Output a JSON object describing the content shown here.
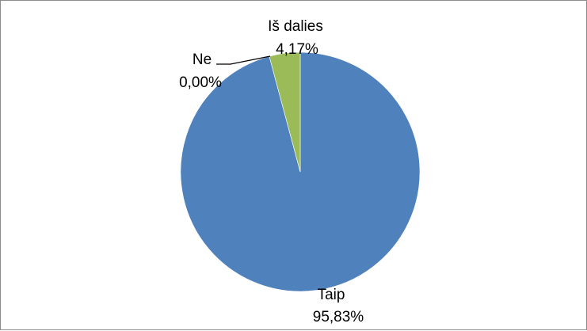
{
  "chart_data": {
    "type": "pie",
    "start_angle_deg": 0,
    "direction": "clockwise",
    "slices": [
      {
        "label": "Taip",
        "value": 95.83,
        "value_text": "95,83%",
        "color": "#4f81bd"
      },
      {
        "label": "Ne",
        "value": 0.0,
        "value_text": "0,00%",
        "color": "#c0504d"
      },
      {
        "label": "Iš dalies",
        "value": 4.17,
        "value_text": "4,17%",
        "color": "#9bbb59"
      }
    ],
    "title": "",
    "legend": "none"
  }
}
